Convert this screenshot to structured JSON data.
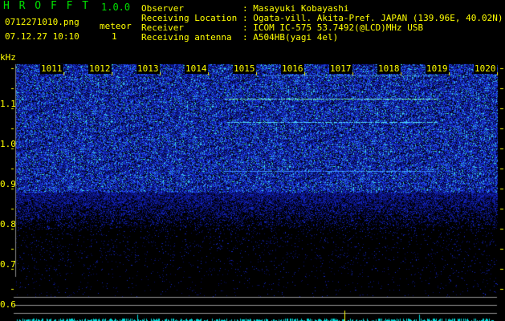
{
  "app": {
    "name": "H R O F F T",
    "version": "1.0.0"
  },
  "file": {
    "name": "0712271010.png",
    "datetime": "07.12.27 10:10"
  },
  "meteor": {
    "label": "meteor",
    "count": "1"
  },
  "info": [
    {
      "label": "Observer",
      "value": "Masayuki Kobayashi"
    },
    {
      "label": "Receiving Location",
      "value": "Ogata-vill. Akita-Pref. JAPAN (139.96E, 40.02N)"
    },
    {
      "label": "Receiver",
      "value": "ICOM IC-575 53.7492(@LCD)MHz USB"
    },
    {
      "label": "Receiving antenna",
      "value": "A504HB(yagi 4el)"
    }
  ],
  "axis": {
    "y_unit": "kHz",
    "y_ticks": [
      "1.1",
      "1.0",
      "0.9",
      "0.8",
      "0.7",
      "0.6"
    ],
    "x_ticks": [
      "1011",
      "1012",
      "1013",
      "1014",
      "1015",
      "1016",
      "1017",
      "1018",
      "1019",
      "1020"
    ]
  },
  "colors": {
    "text": "#ffff00",
    "title": "#00e000",
    "noise": "#1030ff",
    "echo": "#40ffd0",
    "activity": "#00e0e0"
  }
}
